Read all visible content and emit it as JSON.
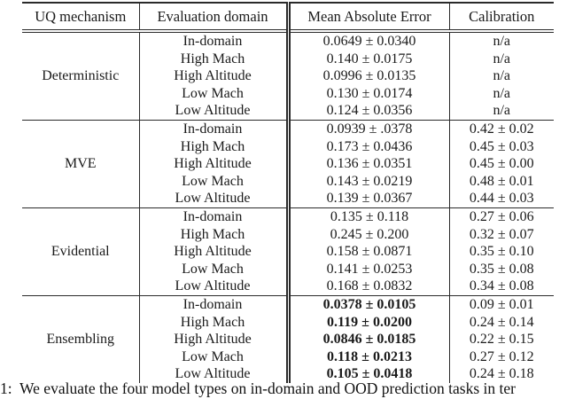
{
  "table": {
    "headers": [
      "UQ mechanism",
      "Evaluation domain",
      "Mean Absolute Error",
      "Calibration"
    ],
    "sections": [
      {
        "mechanism": "Deterministic",
        "rows": [
          {
            "domain": "In-domain",
            "mae": "0.0649 ± 0.0340",
            "cal": "n/a"
          },
          {
            "domain": "High Mach",
            "mae": "0.140 ± 0.0175",
            "cal": "n/a"
          },
          {
            "domain": "High Altitude",
            "mae": "0.0996 ± 0.0135",
            "cal": "n/a"
          },
          {
            "domain": "Low Mach",
            "mae": "0.130 ± 0.0174",
            "cal": "n/a"
          },
          {
            "domain": "Low Altitude",
            "mae": "0.124 ± 0.0356",
            "cal": "n/a"
          }
        ]
      },
      {
        "mechanism": "MVE",
        "rows": [
          {
            "domain": "In-domain",
            "mae": "0.0939 ± .0378",
            "cal": "0.42 ± 0.02"
          },
          {
            "domain": "High Mach",
            "mae": "0.173 ± 0.0436",
            "cal": "0.45 ± 0.03"
          },
          {
            "domain": "High Altitude",
            "mae": "0.136 ± 0.0351",
            "cal": "0.45 ± 0.00"
          },
          {
            "domain": "Low Mach",
            "mae": "0.143 ± 0.0219",
            "cal": "0.48 ± 0.01"
          },
          {
            "domain": "Low Altitude",
            "mae": "0.139 ± 0.0367",
            "cal": "0.44 ± 0.03"
          }
        ]
      },
      {
        "mechanism": "Evidential",
        "rows": [
          {
            "domain": "In-domain",
            "mae": "0.135 ± 0.118",
            "cal": "0.27 ± 0.06"
          },
          {
            "domain": "High Mach",
            "mae": "0.245 ± 0.200",
            "cal": "0.32 ± 0.07"
          },
          {
            "domain": "High Altitude",
            "mae": "0.158 ± 0.0871",
            "cal": "0.35 ± 0.10"
          },
          {
            "domain": "Low Mach",
            "mae": "0.141 ± 0.0253",
            "cal": "0.35 ± 0.08"
          },
          {
            "domain": "Low Altitude",
            "mae": "0.168 ± 0.0832",
            "cal": "0.34 ± 0.08"
          }
        ]
      },
      {
        "mechanism": "Ensembling",
        "mae_bold": true,
        "rows": [
          {
            "domain": "In-domain",
            "mae": "0.0378 ± 0.0105",
            "cal": "0.09 ± 0.01"
          },
          {
            "domain": "High Mach",
            "mae": "0.119 ± 0.0200",
            "cal": "0.24 ± 0.14"
          },
          {
            "domain": "High Altitude",
            "mae": "0.0846 ± 0.0185",
            "cal": "0.22 ± 0.15"
          },
          {
            "domain": "Low Mach",
            "mae": "0.118 ± 0.0213",
            "cal": "0.27 ± 0.12"
          },
          {
            "domain": "Low Altitude",
            "mae": "0.105 ± 0.0418",
            "cal": "0.24 ± 0.18"
          }
        ]
      }
    ]
  },
  "caption": "1:  We evaluate the four model types on in-domain and OOD prediction tasks in ter"
}
